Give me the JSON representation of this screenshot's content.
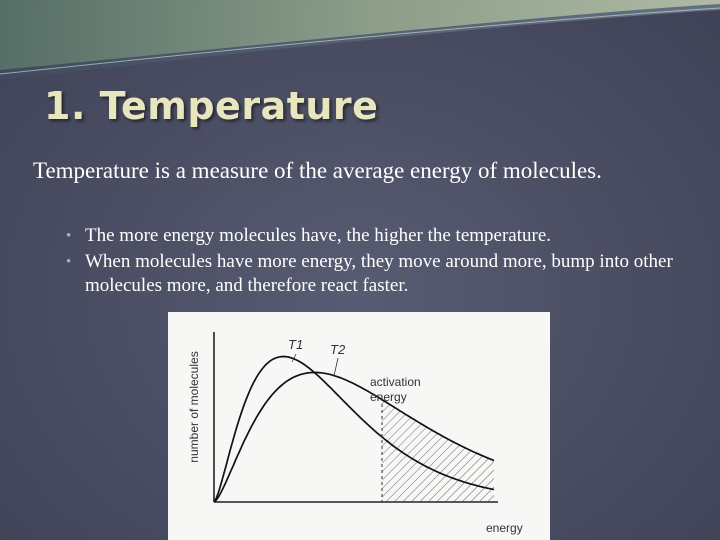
{
  "slide": {
    "title": "1. Temperature",
    "lead": "Temperature is a measure of the average energy of molecules.",
    "bullets": [
      "The more energy molecules have, the higher the temperature.",
      "When molecules have more energy, they move around more, bump into other molecules more, and therefore react faster."
    ]
  },
  "colors": {
    "background": "#4a4d62",
    "title": "#e8e6bf",
    "body_text": "#ffffff",
    "bullet": "#a9b1c9",
    "swoosh": "#7f9a86"
  },
  "chart_data": {
    "type": "line",
    "title": "",
    "xlabel": "energy",
    "ylabel": "number of molecules",
    "series": [
      {
        "name": "T1"
      },
      {
        "name": "T2"
      }
    ],
    "annotations": [
      "activation energy"
    ],
    "shaded_region": "molecules with energy above activation energy",
    "grid": false,
    "legend": "none"
  }
}
